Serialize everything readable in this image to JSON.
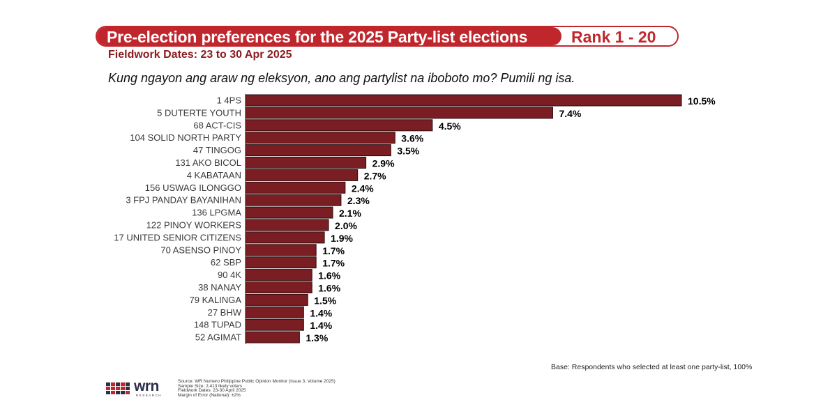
{
  "header": {
    "title": "Pre-election preferences for the 2025 Party-list elections",
    "rank": "Rank 1 - 20",
    "fieldwork": "Fieldwork Dates: 23 to 30 Apr 2025",
    "question": "Kung ngayon ang araw ng eleksyon, ano ang partylist na iboboto mo? Pumili ng isa."
  },
  "chart_data": {
    "type": "bar",
    "orientation": "horizontal",
    "title": "Pre-election preferences for the 2025 Party-list elections",
    "xlabel": "",
    "ylabel": "",
    "xlim": [
      0,
      10.5
    ],
    "categories": [
      "1 4PS",
      "5 DUTERTE YOUTH",
      "68 ACT-CIS",
      "104 SOLID NORTH PARTY",
      "47 TINGOG",
      "131 AKO BICOL",
      "4 KABATAAN",
      "156 USWAG ILONGGO",
      "3 FPJ PANDAY BAYANIHAN",
      "136 LPGMA",
      "122 PINOY WORKERS",
      "17 UNITED SENIOR CITIZENS",
      "70 ASENSO PINOY",
      "62 SBP",
      "90 4K",
      "38 NANAY",
      "79 KALINGA",
      "27 BHW",
      "148 TUPAD",
      "52 AGIMAT"
    ],
    "values": [
      10.5,
      7.4,
      4.5,
      3.6,
      3.5,
      2.9,
      2.7,
      2.4,
      2.3,
      2.1,
      2.0,
      1.9,
      1.7,
      1.7,
      1.6,
      1.6,
      1.5,
      1.4,
      1.4,
      1.3
    ],
    "value_labels": [
      "10.5%",
      "7.4%",
      "4.5%",
      "3.6%",
      "3.5%",
      "2.9%",
      "2.7%",
      "2.4%",
      "2.3%",
      "2.1%",
      "2.0%",
      "1.9%",
      "1.7%",
      "1.7%",
      "1.6%",
      "1.6%",
      "1.5%",
      "1.4%",
      "1.4%",
      "1.3%"
    ],
    "bar_color": "#7b1e23"
  },
  "footer": {
    "base_note": "Base: Respondents who selected at least one party-list, 100%",
    "logo_text": "wrn",
    "logo_sub": "RESEARCH",
    "source_lines": [
      "Source: WR Numero Philippine Public Opinion Monitor (Issue 3, Volume 2025)",
      "Sample Size: 2,413 likely voters",
      "Fieldwork Dates: 23-30 April 2025",
      "Margin of Error (National): ±2%"
    ]
  },
  "colors": {
    "brand_red": "#c0272d",
    "dark_red": "#8b1a1e",
    "logo_navy": "#2b2f4a"
  }
}
